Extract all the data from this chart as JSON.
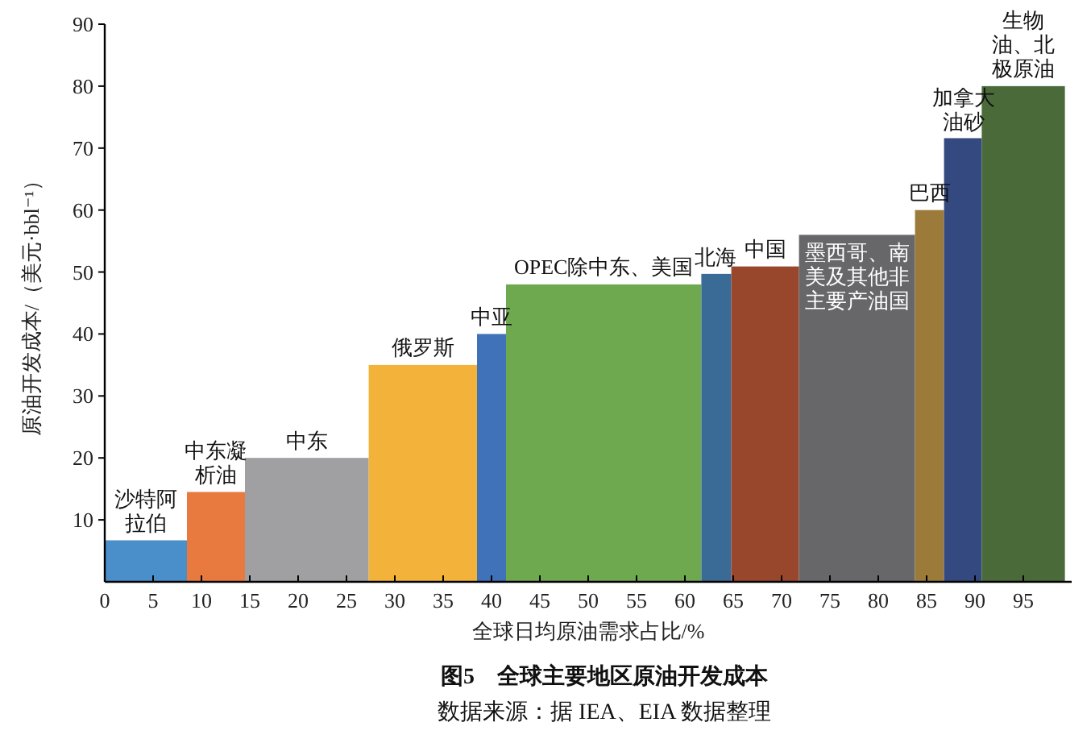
{
  "chart_data": {
    "type": "histogram",
    "title": "图5　全球主要地区原油开发成本",
    "xlabel": "全球日均原油需求占比/%",
    "ylabel": "原油开发成本/（美元·bbl⁻¹）",
    "bins": [
      0,
      8.5,
      14.5,
      27.3,
      38.5,
      41.5,
      61.7,
      64.8,
      71.8,
      83.8,
      86.8,
      90.7,
      99.3
    ],
    "values": [
      6.7,
      14.5,
      20,
      35,
      40,
      48,
      49.7,
      50.9,
      56,
      60,
      71.6,
      80
    ],
    "colors": [
      "#4a8fc9",
      "#e8793f",
      "#a0a0a2",
      "#f3b23a",
      "#3f72b8",
      "#6fa94f",
      "#3a6a96",
      "#98462c",
      "#67676a",
      "#9b7a3a",
      "#34497f",
      "#4a6a3a"
    ],
    "xlim": [
      0,
      100
    ],
    "ylim": [
      0,
      90
    ],
    "xticks": [
      0,
      5,
      10,
      15,
      20,
      25,
      30,
      35,
      40,
      45,
      50,
      55,
      60,
      65,
      70,
      75,
      80,
      85,
      90,
      95
    ],
    "yticks": [
      10,
      20,
      30,
      40,
      50,
      60,
      70,
      80,
      90
    ],
    "grid": false,
    "annotations": [
      {
        "text": "沙特阿拉伯",
        "x": 4.25,
        "y": 6.7
      },
      {
        "text": "中东凝析油",
        "x": 11.5,
        "y": 14.5
      },
      {
        "text": "中东",
        "x": 20.9,
        "y": 20
      },
      {
        "text": "俄罗斯",
        "x": 32.9,
        "y": 35
      },
      {
        "text": "中亚",
        "x": 40,
        "y": 40
      },
      {
        "text": "OPEC除中东、美国",
        "x": 51.6,
        "y": 48
      },
      {
        "text": "北海",
        "x": 63.2,
        "y": 49.7
      },
      {
        "text": "中国",
        "x": 68.3,
        "y": 50.9
      },
      {
        "text": "墨西哥、南美及其他非主要产油国",
        "x": 77.8,
        "y": 56
      },
      {
        "text": "巴西",
        "x": 85.3,
        "y": 60
      },
      {
        "text": "加拿大油砂",
        "x": 88.8,
        "y": 71.6
      },
      {
        "text": "生物油、北极原油",
        "x": 95,
        "y": 80
      },
      "数据来源：据 IEA、EIA 数据整理"
    ]
  }
}
